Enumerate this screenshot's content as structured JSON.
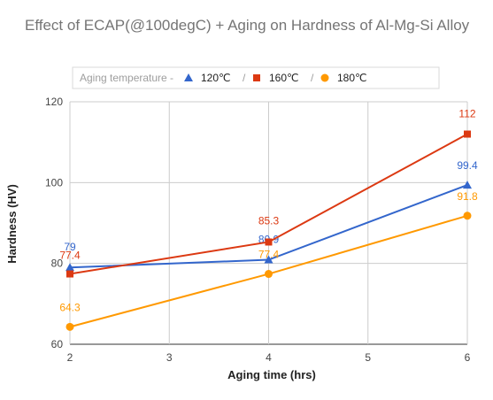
{
  "chart_data": {
    "type": "line",
    "title": "Effect of ECAP(@100degC) + Aging on Hardness of Al-Mg-Si Alloy",
    "xlabel": "Aging time (hrs)",
    "ylabel": "Hardness (HV)",
    "xlim": [
      2,
      6
    ],
    "ylim": [
      60,
      120
    ],
    "x_ticks": [
      2,
      3,
      4,
      5,
      6
    ],
    "y_ticks": [
      60,
      80,
      100,
      120
    ],
    "grid": true,
    "legend": {
      "placement": "top",
      "heading": "Aging temperature -",
      "separator": "/"
    },
    "series": [
      {
        "name": "120℃",
        "marker": "triangle",
        "color": "#3366cc",
        "x": [
          2,
          4,
          6
        ],
        "y": [
          79,
          80.9,
          99.4
        ],
        "labels": [
          "79",
          "80.9",
          "99.4"
        ]
      },
      {
        "name": "160℃",
        "marker": "square",
        "color": "#dc3912",
        "x": [
          2,
          4,
          6
        ],
        "y": [
          77.4,
          85.3,
          112
        ],
        "labels": [
          "77.4",
          "85.3",
          "112"
        ]
      },
      {
        "name": "180℃",
        "marker": "circle",
        "color": "#ff9900",
        "x": [
          2,
          4,
          6
        ],
        "y": [
          64.3,
          77.4,
          91.8
        ],
        "labels": [
          "64.3",
          "77.4",
          "91.8"
        ]
      }
    ]
  }
}
